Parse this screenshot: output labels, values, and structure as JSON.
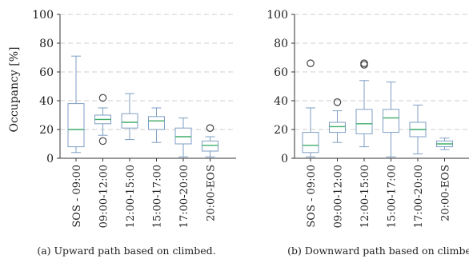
{
  "chart_data": [
    {
      "type": "box",
      "caption": "(a) Upward path based on climbed.",
      "ylabel": "Occupancy [%]",
      "ylim": [
        0,
        100
      ],
      "yticks": [
        0,
        20,
        40,
        60,
        80,
        100
      ],
      "grid": "dashed-horizontal",
      "categories": [
        "SOS - 09:00",
        "09:00-12:00",
        "12:00-15:00",
        "15:00-17:00",
        "17:00-20:00",
        "20:00-EOS"
      ],
      "boxes": [
        {
          "whisker_low": 4,
          "q1": 8,
          "median": 20,
          "q3": 38,
          "whisker_high": 71,
          "outliers": []
        },
        {
          "whisker_low": 16,
          "q1": 24,
          "median": 27,
          "q3": 30,
          "whisker_high": 35,
          "outliers": [
            12,
            42
          ]
        },
        {
          "whisker_low": 13,
          "q1": 21,
          "median": 25,
          "q3": 31,
          "whisker_high": 45,
          "outliers": []
        },
        {
          "whisker_low": 11,
          "q1": 20,
          "median": 26,
          "q3": 29,
          "whisker_high": 35,
          "outliers": []
        },
        {
          "whisker_low": 1,
          "q1": 10,
          "median": 15,
          "q3": 21,
          "whisker_high": 28,
          "outliers": []
        },
        {
          "whisker_low": 1,
          "q1": 5,
          "median": 9,
          "q3": 12,
          "whisker_high": 15,
          "outliers": [
            21
          ]
        }
      ],
      "colors": {
        "box": "#7f9fc4",
        "median": "#3fae6a",
        "grid": "#cfcfcf"
      }
    },
    {
      "type": "box",
      "caption": "(b) Downward path based on climbed.",
      "ylabel": "",
      "ylim": [
        0,
        100
      ],
      "yticks": [
        0,
        20,
        40,
        60,
        80,
        100
      ],
      "grid": "dashed-horizontal",
      "categories": [
        "SOS - 09:00",
        "09:00-12:00",
        "12:00-15:00",
        "15:00-17:00",
        "17:00-20:00",
        "20:00-EOS"
      ],
      "boxes": [
        {
          "whisker_low": 1,
          "q1": 4,
          "median": 9,
          "q3": 18,
          "whisker_high": 35,
          "outliers": [
            66
          ]
        },
        {
          "whisker_low": 11,
          "q1": 18,
          "median": 22,
          "q3": 25,
          "whisker_high": 33,
          "outliers": [
            39
          ]
        },
        {
          "whisker_low": 8,
          "q1": 17,
          "median": 24,
          "q3": 34,
          "whisker_high": 54,
          "outliers": [
            65,
            66
          ]
        },
        {
          "whisker_low": 1,
          "q1": 18,
          "median": 28,
          "q3": 34,
          "whisker_high": 53,
          "outliers": []
        },
        {
          "whisker_low": 3,
          "q1": 15,
          "median": 20,
          "q3": 25,
          "whisker_high": 37,
          "outliers": []
        },
        {
          "whisker_low": 6,
          "q1": 8,
          "median": 10,
          "q3": 12,
          "whisker_high": 14,
          "outliers": []
        }
      ],
      "colors": {
        "box": "#7f9fc4",
        "median": "#3fae6a",
        "grid": "#cfcfcf"
      }
    }
  ]
}
